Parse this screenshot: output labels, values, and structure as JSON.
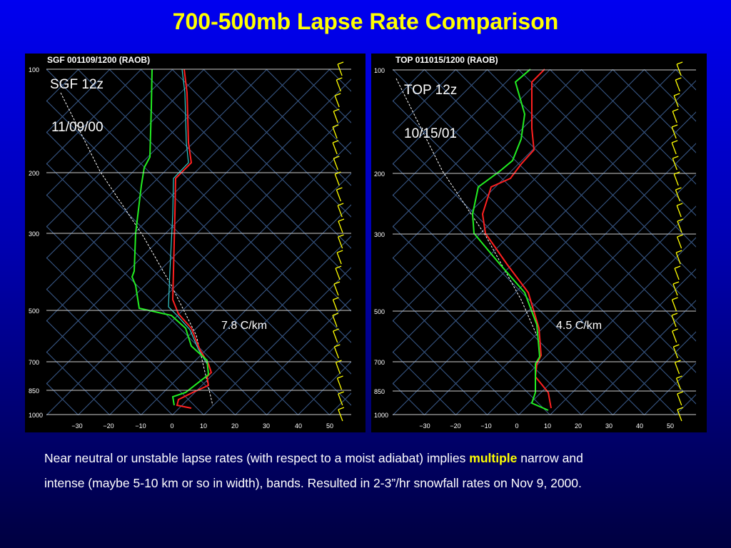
{
  "title": "700-500mb Lapse Rate Comparison",
  "panels": [
    {
      "header": "SGF   001109/1200  (RAOB)",
      "label": "SGF 12z",
      "date": "11/09/00",
      "lapse_rate": "7.8 C/km",
      "pressure_labels": [
        "100",
        "200",
        "300",
        "500",
        "700",
        "850",
        "1000"
      ],
      "temperature_labels": [
        "−30",
        "−20",
        "−10",
        "0",
        "10",
        "20",
        "30",
        "40",
        "50"
      ]
    },
    {
      "header": "TOP   011015/1200  (RAOB)",
      "label": "TOP 12z",
      "date": "10/15/01",
      "lapse_rate": "4.5 C/km",
      "pressure_labels": [
        "100",
        "200",
        "300",
        "500",
        "700",
        "850",
        "1000"
      ],
      "temperature_labels": [
        "−30",
        "−20",
        "−10",
        "0",
        "10",
        "20",
        "30",
        "40",
        "50"
      ]
    }
  ],
  "caption": {
    "line1_start": "Near neutral or unstable lapse rates (with respect to a moist adiabat) implies ",
    "line1_emphasis": "multiple",
    "line1_end": " narrow and",
    "line2": "intense (maybe 5-10 km or so in width), bands. Resulted in 2-3”/hr snowfall rates on Nov 9, 2000."
  }
}
